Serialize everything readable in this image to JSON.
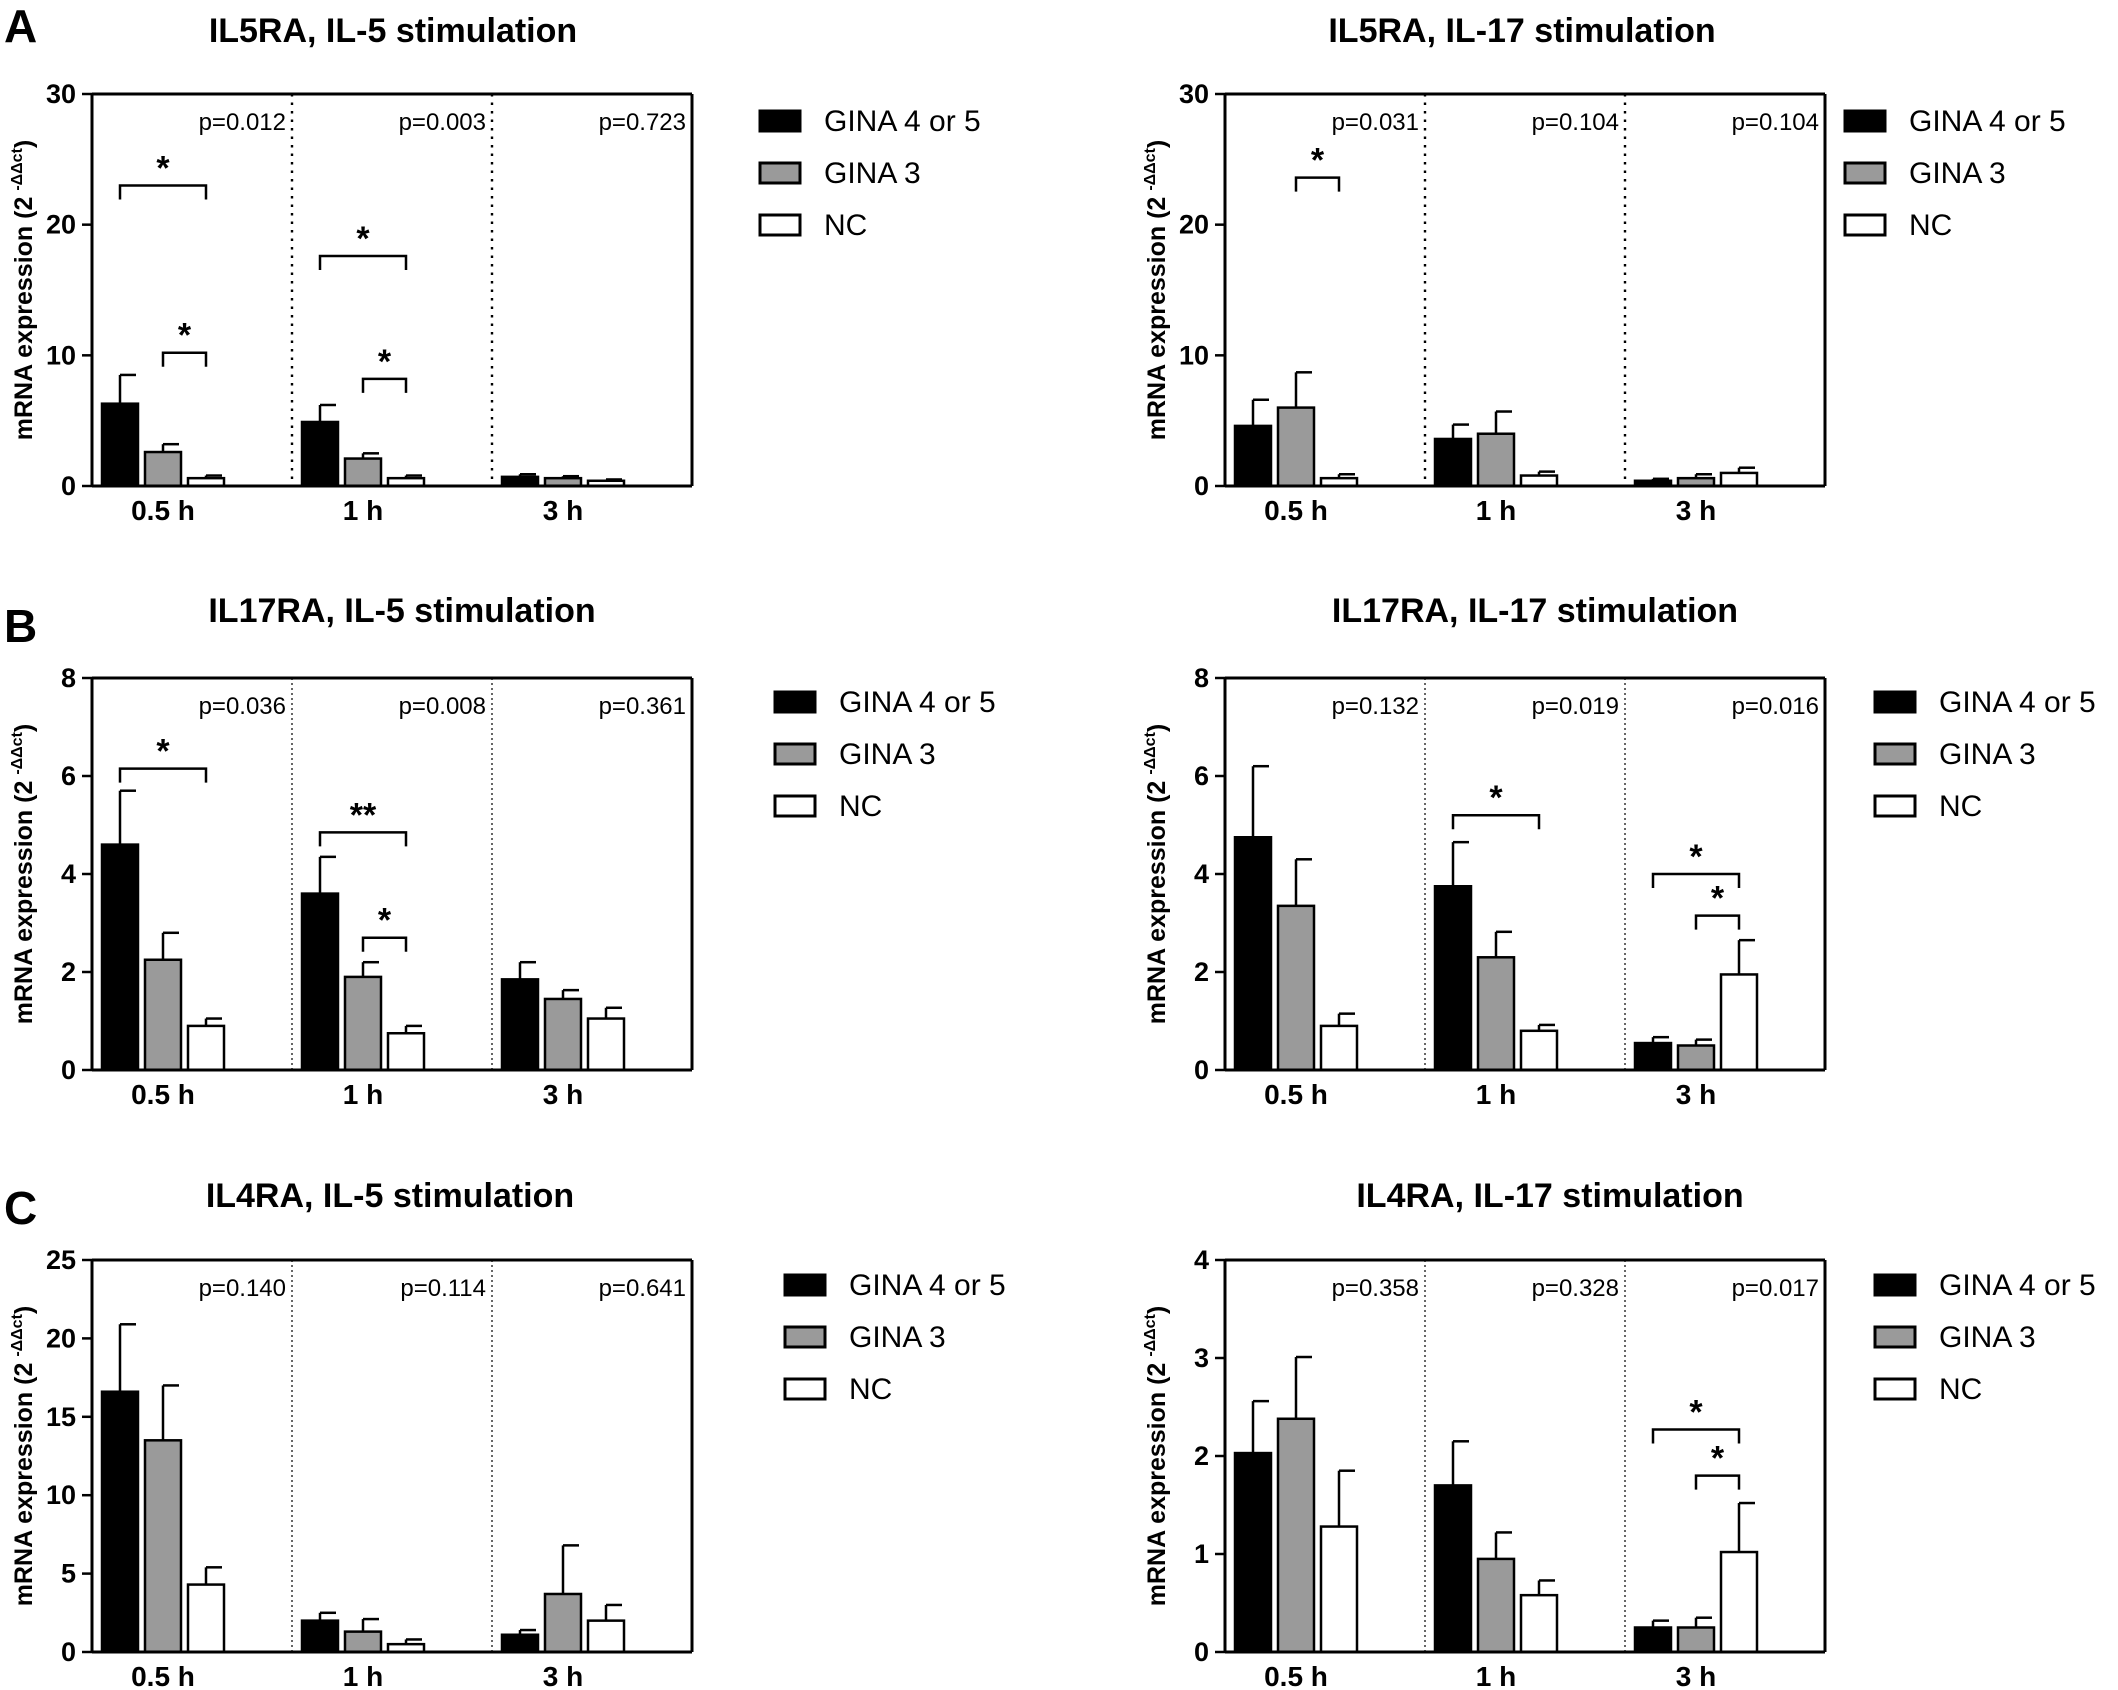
{
  "panel_letters": [
    "A",
    "B",
    "C"
  ],
  "legend": {
    "entries": [
      {
        "label": "GINA 4 or 5",
        "fill": "#000000"
      },
      {
        "label": "GINA 3",
        "fill": "#9a9a9a"
      },
      {
        "label": "NC",
        "fill": "#ffffff"
      }
    ]
  },
  "colors": {
    "gina45": "#000000",
    "gina3": "#9a9a9a",
    "nc": "#ffffff",
    "axis": "#000000"
  },
  "chart_data": [
    {
      "type": "bar",
      "panel": "A",
      "title": "IL5RA, IL-5 stimulation",
      "ylabel": "mRNA expression (2",
      "ylabel_sup": "-ΔΔct",
      "ylabel_close": ")",
      "ylim": [
        0,
        30
      ],
      "yticks": [
        "0",
        "10",
        "20",
        "30"
      ],
      "categories": [
        "0.5 h",
        "1 h",
        "3 h"
      ],
      "pvalues": [
        "p=0.012",
        "p=0.003",
        "p=0.723"
      ],
      "series": [
        {
          "name": "GINA 4 or 5",
          "values": [
            6.3,
            4.9,
            0.7
          ],
          "errors": [
            2.2,
            1.3,
            0.2
          ]
        },
        {
          "name": "GINA 3",
          "values": [
            2.6,
            2.1,
            0.6
          ],
          "errors": [
            0.6,
            0.4,
            0.15
          ]
        },
        {
          "name": "NC",
          "values": [
            0.6,
            0.6,
            0.4
          ],
          "errors": [
            0.2,
            0.2,
            0.1
          ]
        }
      ],
      "significance": [
        {
          "group": 0,
          "from": 0,
          "to": 2,
          "y": 23.0,
          "label": "*"
        },
        {
          "group": 0,
          "from": 1,
          "to": 2,
          "y": 10.2,
          "label": "*"
        },
        {
          "group": 1,
          "from": 0,
          "to": 2,
          "y": 17.6,
          "label": "*"
        },
        {
          "group": 1,
          "from": 1,
          "to": 2,
          "y": 8.2,
          "label": "*"
        }
      ]
    },
    {
      "type": "bar",
      "panel": "",
      "title": "IL5RA, IL-17 stimulation",
      "ylabel": "mRNA expression (2",
      "ylabel_sup": "-ΔΔct",
      "ylabel_close": ")",
      "ylim": [
        0,
        30
      ],
      "yticks": [
        "0",
        "10",
        "20",
        "30"
      ],
      "categories": [
        "0.5 h",
        "1 h",
        "3 h"
      ],
      "pvalues": [
        "p=0.031",
        "p=0.104",
        "p=0.104"
      ],
      "series": [
        {
          "name": "GINA 4 or 5",
          "values": [
            4.6,
            3.6,
            0.4
          ],
          "errors": [
            2.0,
            1.1,
            0.15
          ]
        },
        {
          "name": "GINA 3",
          "values": [
            6.0,
            4.0,
            0.6
          ],
          "errors": [
            2.7,
            1.7,
            0.3
          ]
        },
        {
          "name": "NC",
          "values": [
            0.6,
            0.8,
            1.0
          ],
          "errors": [
            0.3,
            0.3,
            0.4
          ]
        }
      ],
      "significance": [
        {
          "group": 0,
          "from": 1,
          "to": 2,
          "y": 23.6,
          "label": "*"
        }
      ]
    },
    {
      "type": "bar",
      "panel": "B",
      "title": "IL17RA, IL-5 stimulation",
      "ylabel": "mRNA expression (2",
      "ylabel_sup": "-ΔΔct",
      "ylabel_close": ")",
      "ylim": [
        0,
        8
      ],
      "yticks": [
        "0",
        "2",
        "4",
        "6",
        "8"
      ],
      "categories": [
        "0.5 h",
        "1 h",
        "3 h"
      ],
      "pvalues": [
        "p=0.036",
        "p=0.008",
        "p=0.361"
      ],
      "series": [
        {
          "name": "GINA 4 or 5",
          "values": [
            4.6,
            3.6,
            1.85
          ],
          "errors": [
            1.1,
            0.75,
            0.35
          ]
        },
        {
          "name": "GINA 3",
          "values": [
            2.25,
            1.9,
            1.45
          ],
          "errors": [
            0.55,
            0.3,
            0.18
          ]
        },
        {
          "name": "NC",
          "values": [
            0.9,
            0.75,
            1.05
          ],
          "errors": [
            0.15,
            0.15,
            0.22
          ]
        }
      ],
      "significance": [
        {
          "group": 0,
          "from": 0,
          "to": 2,
          "y": 6.15,
          "label": "*"
        },
        {
          "group": 1,
          "from": 0,
          "to": 2,
          "y": 4.85,
          "label": "**"
        },
        {
          "group": 1,
          "from": 1,
          "to": 2,
          "y": 2.7,
          "label": "*"
        }
      ]
    },
    {
      "type": "bar",
      "panel": "",
      "title": "IL17RA, IL-17 stimulation",
      "ylabel": "mRNA expression (2",
      "ylabel_sup": "-ΔΔct",
      "ylabel_close": ")",
      "ylim": [
        0,
        8
      ],
      "yticks": [
        "0",
        "2",
        "4",
        "6",
        "8"
      ],
      "categories": [
        "0.5 h",
        "1 h",
        "3 h"
      ],
      "pvalues": [
        "p=0.132",
        "p=0.019",
        "p=0.016"
      ],
      "series": [
        {
          "name": "GINA 4 or 5",
          "values": [
            4.75,
            3.75,
            0.55
          ],
          "errors": [
            1.45,
            0.9,
            0.12
          ]
        },
        {
          "name": "GINA 3",
          "values": [
            3.35,
            2.3,
            0.5
          ],
          "errors": [
            0.95,
            0.52,
            0.12
          ]
        },
        {
          "name": "NC",
          "values": [
            0.9,
            0.8,
            1.95
          ],
          "errors": [
            0.25,
            0.12,
            0.7
          ]
        }
      ],
      "significance": [
        {
          "group": 1,
          "from": 0,
          "to": 2,
          "y": 5.2,
          "label": "*"
        },
        {
          "group": 2,
          "from": 0,
          "to": 2,
          "y": 4.0,
          "label": "*"
        },
        {
          "group": 2,
          "from": 1,
          "to": 2,
          "y": 3.15,
          "label": "*"
        }
      ]
    },
    {
      "type": "bar",
      "panel": "C",
      "title": "IL4RA, IL-5 stimulation",
      "ylabel": "mRNA expression (2",
      "ylabel_sup": "-ΔΔct",
      "ylabel_close": ")",
      "ylim": [
        0,
        25
      ],
      "yticks": [
        "0",
        "5",
        "10",
        "15",
        "20",
        "25"
      ],
      "categories": [
        "0.5 h",
        "1 h",
        "3 h"
      ],
      "pvalues": [
        "p=0.140",
        "p=0.114",
        "p=0.641"
      ],
      "series": [
        {
          "name": "GINA 4 or 5",
          "values": [
            16.6,
            2.0,
            1.1
          ],
          "errors": [
            4.3,
            0.5,
            0.3
          ]
        },
        {
          "name": "GINA 3",
          "values": [
            13.5,
            1.3,
            3.7
          ],
          "errors": [
            3.5,
            0.8,
            3.1
          ]
        },
        {
          "name": "NC",
          "values": [
            4.3,
            0.5,
            2.0
          ],
          "errors": [
            1.1,
            0.3,
            1.0
          ]
        }
      ],
      "significance": []
    },
    {
      "type": "bar",
      "panel": "",
      "title": "IL4RA, IL-17 stimulation",
      "ylabel": "mRNA expression (2",
      "ylabel_sup": "-ΔΔct",
      "ylabel_close": ")",
      "ylim": [
        0,
        4
      ],
      "yticks": [
        "0",
        "1",
        "2",
        "3",
        "4"
      ],
      "categories": [
        "0.5 h",
        "1 h",
        "3 h"
      ],
      "pvalues": [
        "p=0.358",
        "p=0.328",
        "p=0.017"
      ],
      "series": [
        {
          "name": "GINA 4 or 5",
          "values": [
            2.03,
            1.7,
            0.25
          ],
          "errors": [
            0.53,
            0.45,
            0.07
          ]
        },
        {
          "name": "GINA 3",
          "values": [
            2.38,
            0.95,
            0.25
          ],
          "errors": [
            0.63,
            0.27,
            0.1
          ]
        },
        {
          "name": "NC",
          "values": [
            1.28,
            0.58,
            1.02
          ],
          "errors": [
            0.57,
            0.15,
            0.5
          ]
        }
      ],
      "significance": [
        {
          "group": 2,
          "from": 0,
          "to": 2,
          "y": 2.27,
          "label": "*"
        },
        {
          "group": 2,
          "from": 1,
          "to": 2,
          "y": 1.8,
          "label": "*"
        }
      ]
    }
  ]
}
